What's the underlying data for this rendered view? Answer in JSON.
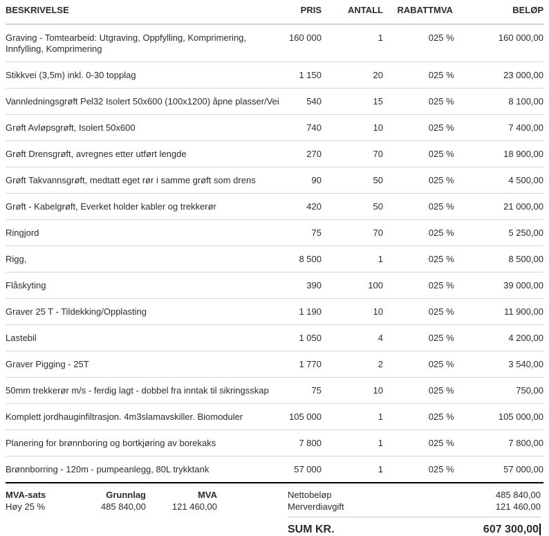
{
  "table": {
    "columns": [
      "BESKRIVELSE",
      "PRIS",
      "ANTALL",
      "RABATT",
      "MVA",
      "BELØP"
    ],
    "rows": [
      {
        "desc": "Graving - Tomtearbeid: Utgraving, Oppfylling, Komprimering, Innfylling, Komprimering",
        "pris": "160 000",
        "antall": "1",
        "rabatt": "0",
        "mva": "25 %",
        "belop": "160 000,00"
      },
      {
        "desc": "Stikkvei (3,5m) inkl. 0-30 topplag",
        "pris": "1 150",
        "antall": "20",
        "rabatt": "0",
        "mva": "25 %",
        "belop": "23 000,00"
      },
      {
        "desc": "Vannledningsgrøft Pel32 Isolert 50x600 (100x1200) åpne plasser/Vei",
        "pris": "540",
        "antall": "15",
        "rabatt": "0",
        "mva": "25 %",
        "belop": "8 100,00"
      },
      {
        "desc": "Grøft Avløpsgrøft, Isolert 50x600",
        "pris": "740",
        "antall": "10",
        "rabatt": "0",
        "mva": "25 %",
        "belop": "7 400,00"
      },
      {
        "desc": "Grøft Drensgrøft, avregnes etter utført lengde",
        "pris": "270",
        "antall": "70",
        "rabatt": "0",
        "mva": "25 %",
        "belop": "18 900,00"
      },
      {
        "desc": "Grøft Takvannsgrøft, medtatt eget rør i samme grøft som drens",
        "pris": "90",
        "antall": "50",
        "rabatt": "0",
        "mva": "25 %",
        "belop": "4 500,00"
      },
      {
        "desc": "Grøft - Kabelgrøft, Everket holder kabler og trekkerør",
        "pris": "420",
        "antall": "50",
        "rabatt": "0",
        "mva": "25 %",
        "belop": "21 000,00"
      },
      {
        "desc": "Ringjord",
        "pris": "75",
        "antall": "70",
        "rabatt": "0",
        "mva": "25 %",
        "belop": "5 250,00"
      },
      {
        "desc": "Rigg,",
        "pris": "8 500",
        "antall": "1",
        "rabatt": "0",
        "mva": "25 %",
        "belop": "8 500,00"
      },
      {
        "desc": "Flåskyting",
        "pris": "390",
        "antall": "100",
        "rabatt": "0",
        "mva": "25 %",
        "belop": "39 000,00"
      },
      {
        "desc": "Graver 25 T - Tildekking/Opplasting",
        "pris": "1 190",
        "antall": "10",
        "rabatt": "0",
        "mva": "25 %",
        "belop": "11 900,00"
      },
      {
        "desc": "Lastebil",
        "pris": "1 050",
        "antall": "4",
        "rabatt": "0",
        "mva": "25 %",
        "belop": "4 200,00"
      },
      {
        "desc": "Graver Pigging - 25T",
        "pris": "1 770",
        "antall": "2",
        "rabatt": "0",
        "mva": "25 %",
        "belop": "3 540,00"
      },
      {
        "desc": "50mm trekkerør m/s - ferdig lagt - dobbel fra inntak til sikringsskap",
        "pris": "75",
        "antall": "10",
        "rabatt": "0",
        "mva": "25 %",
        "belop": "750,00"
      },
      {
        "desc": "Komplett jordhauginfiltrasjon. 4m3slamavskiller. Biomoduler",
        "pris": "105 000",
        "antall": "1",
        "rabatt": "0",
        "mva": "25 %",
        "belop": "105 000,00"
      },
      {
        "desc": "Planering for brønnboring og bortkjøring av borekaks",
        "pris": "7 800",
        "antall": "1",
        "rabatt": "0",
        "mva": "25 %",
        "belop": "7 800,00"
      },
      {
        "desc": "Brønnborring - 120m - pumpeanlegg, 80L trykktank",
        "pris": "57 000",
        "antall": "1",
        "rabatt": "0",
        "mva": "25 %",
        "belop": "57 000,00"
      }
    ]
  },
  "footer": {
    "vat_table": {
      "headers": [
        "MVA-sats",
        "Grunnlag",
        "MVA"
      ],
      "row": {
        "sats": "Høy 25 %",
        "grunnlag": "485 840,00",
        "mva": "121 460,00"
      }
    },
    "totals": {
      "net_label": "Nettobeløp",
      "net_value": "485 840,00",
      "vat_label": "Merverdiavgift",
      "vat_value": "121 460,00",
      "sum_label": "SUM KR.",
      "sum_value": "607 300,00"
    }
  },
  "colors": {
    "text": "#2b2b2b",
    "row_border": "#d5d5d5",
    "footer_divider": "#000000",
    "sum_divider": "#c9c9c9"
  }
}
